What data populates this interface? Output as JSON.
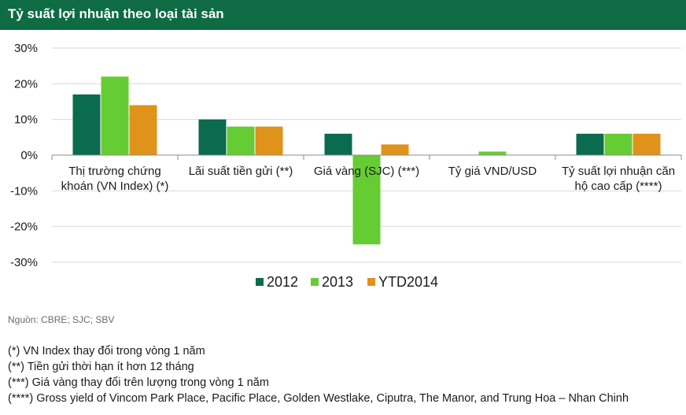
{
  "header": {
    "title": "Tỷ suất lợi nhuận theo loại tài sản"
  },
  "chart_data": {
    "type": "bar",
    "title": "",
    "xlabel": "",
    "ylabel": "",
    "ylim": [
      -30,
      30
    ],
    "yticks": [
      30,
      20,
      10,
      0,
      -10,
      -20,
      -30
    ],
    "ytick_labels": [
      "30%",
      "20%",
      "10%",
      "0%",
      "-10%",
      "-20%",
      "-30%"
    ],
    "categories": [
      [
        "Thị trường chứng",
        "khoán (VN Index) (*)"
      ],
      [
        "Lãi suất tiền gửi (**)"
      ],
      [
        "Giá vàng (SJC) (***)"
      ],
      [
        "Tỷ giá VND/USD"
      ],
      [
        "Tỷ suất lợi nhuận căn",
        "hộ cao cấp (****)"
      ]
    ],
    "series": [
      {
        "name": "2012",
        "color": "#0b6b4e",
        "values": [
          17,
          10,
          6,
          0,
          6
        ]
      },
      {
        "name": "2013",
        "color": "#66cc33",
        "values": [
          22,
          8,
          -25,
          1,
          6
        ]
      },
      {
        "name": "YTD2014",
        "color": "#e0931a",
        "values": [
          14,
          8,
          3,
          0,
          6
        ]
      }
    ],
    "grid": true,
    "legend": "bottom"
  },
  "source": "Nguồn: CBRE; SJC; SBV",
  "notes": [
    "(*) VN Index thay đổi trong vòng 1 năm",
    "(**) Tiền gửi thời hạn ít hơn 12 tháng",
    "(***) Giá vàng thay đổi  trên lượng trong vòng 1 năm",
    "(****) Gross yield of Vincom Park Place, Pacific Place, Golden Westlake, Ciputra, The Manor, and Trung Hoa – Nhan Chinh"
  ]
}
